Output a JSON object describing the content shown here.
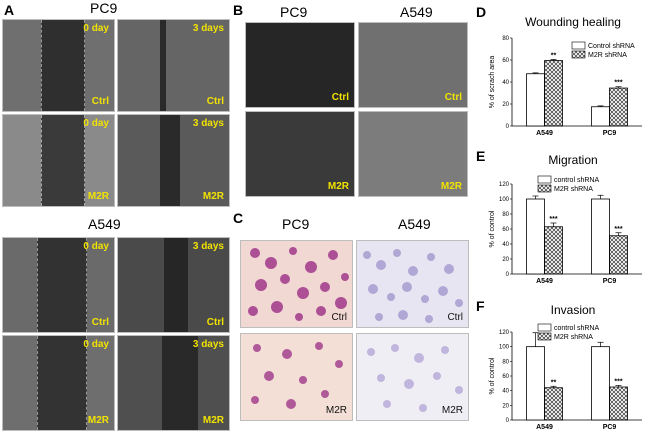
{
  "panel_a": {
    "letter": "A",
    "pc9_title": "PC9",
    "a549_title": "A549",
    "labels": {
      "day0": "0 day",
      "day3": "3 days",
      "ctrl": "Ctrl",
      "m2r": "M2R"
    }
  },
  "panel_b": {
    "letter": "B",
    "col1": "PC9",
    "col2": "A549",
    "labels": {
      "ctrl": "Ctrl",
      "m2r": "M2R"
    }
  },
  "panel_c": {
    "letter": "C",
    "col1": "PC9",
    "col2": "A549",
    "labels": {
      "ctrl": "Ctrl",
      "m2r": "M2R"
    }
  },
  "panel_d": {
    "letter": "D"
  },
  "panel_e": {
    "letter": "E"
  },
  "panel_f": {
    "letter": "F"
  },
  "colors": {
    "hatch": "#333333",
    "bar_edge": "#000000",
    "stain": "#a0388a",
    "bg_pink": "#f3dcd8",
    "bg_lav": "#e7e4f3"
  },
  "chart_data": [
    {
      "type": "bar",
      "title": "Wounding healing",
      "ylabel": "% of scrach area",
      "categories": [
        "A549",
        "PC9"
      ],
      "ylim": [
        0,
        80
      ],
      "yticks": [
        "0",
        "20",
        "40",
        "60",
        "80"
      ],
      "series": [
        {
          "name": "Control shRNA",
          "values": [
            47.5,
            17.5
          ],
          "errors": [
            0.8,
            0.8
          ],
          "fill": "white"
        },
        {
          "name": "M2R shRNA",
          "values": [
            59.5,
            34.5
          ],
          "errors": [
            1.0,
            1.2
          ],
          "fill": "hatch"
        }
      ],
      "significance": [
        "**",
        "***"
      ],
      "legend": "top-right"
    },
    {
      "type": "bar",
      "title": "Migration",
      "ylabel": "% of control",
      "categories": [
        "A549",
        "PC9"
      ],
      "ylim": [
        0,
        120
      ],
      "yticks": [
        "0",
        "20",
        "40",
        "60",
        "80",
        "100",
        "120"
      ],
      "series": [
        {
          "name": "control shRNA",
          "values": [
            100,
            100
          ],
          "errors": [
            4,
            5
          ],
          "fill": "white"
        },
        {
          "name": "M2R shRNA",
          "values": [
            63,
            51
          ],
          "errors": [
            5,
            4
          ],
          "fill": "hatch"
        }
      ],
      "significance": [
        "***",
        "***"
      ],
      "legend": "top-center"
    },
    {
      "type": "bar",
      "title": "Invasion",
      "ylabel": "% of control",
      "categories": [
        "A549",
        "PC9"
      ],
      "ylim": [
        0,
        120
      ],
      "yticks": [
        "0",
        "20",
        "40",
        "60",
        "80",
        "100",
        "120"
      ],
      "series": [
        {
          "name": "control shRNA",
          "values": [
            100,
            100
          ],
          "errors": [
            19,
            6
          ],
          "fill": "white"
        },
        {
          "name": "M2R shRNA",
          "values": [
            44,
            45
          ],
          "errors": [
            2,
            2
          ],
          "fill": "hatch"
        }
      ],
      "significance": [
        "**",
        "***"
      ],
      "legend": "top-center"
    }
  ]
}
